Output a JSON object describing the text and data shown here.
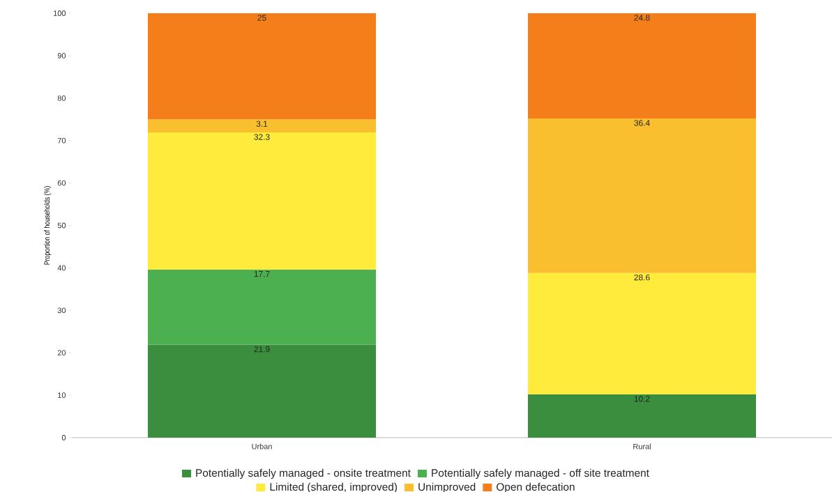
{
  "chart_data": {
    "type": "bar",
    "stacked": true,
    "ylabel": "Proportion of households (%)",
    "categories": [
      "Urban",
      "Rural"
    ],
    "series": [
      {
        "name": "Potentially safely managed - onsite treatment",
        "color": "#3a8e3d",
        "values": [
          21.9,
          10.2
        ]
      },
      {
        "name": "Potentially safely managed - off site treatment",
        "color": "#4caf50",
        "values": [
          17.7,
          null
        ]
      },
      {
        "name": "Limited (shared, improved)",
        "color": "#ffeb3b",
        "values": [
          32.3,
          28.6
        ]
      },
      {
        "name": "Unimproved",
        "color": "#f9bf2f",
        "values": [
          3.1,
          36.4
        ]
      },
      {
        "name": "Open defecation",
        "color": "#f47f1a",
        "values": [
          25,
          24.8
        ]
      }
    ],
    "ylim": [
      0,
      100
    ],
    "yticks": [
      0,
      10,
      20,
      30,
      40,
      50,
      60,
      70,
      80,
      90,
      100
    ],
    "data_labels": true,
    "legend": "bottom"
  }
}
